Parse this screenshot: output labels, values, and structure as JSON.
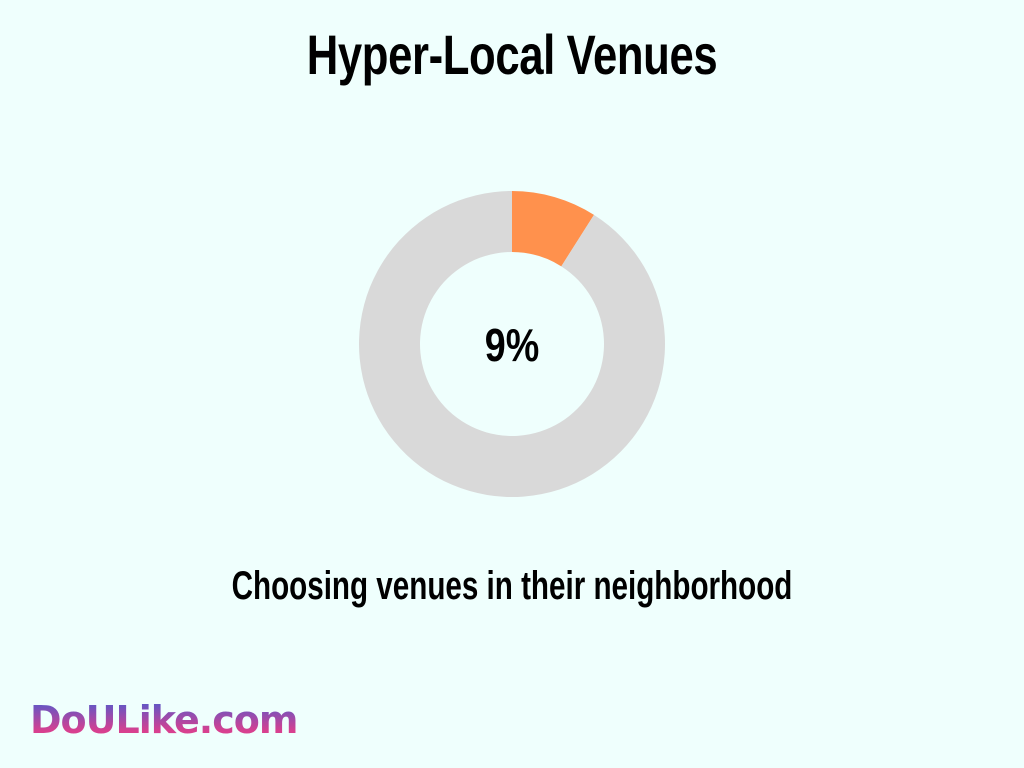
{
  "chart_data": {
    "type": "pie",
    "variant": "donut",
    "title": "Hyper-Local Venues",
    "center_label": "9%",
    "caption": "Choosing venues in their neighborhood",
    "slices": [
      {
        "value": 9,
        "color": "#ff914d"
      },
      {
        "value": 91,
        "color": "#d9d9d9"
      }
    ]
  },
  "branding": {
    "logo_text": "DoULike.com"
  },
  "colors": {
    "background": "#effffd",
    "highlight": "#ff914d",
    "remainder": "#d9d9d9"
  }
}
